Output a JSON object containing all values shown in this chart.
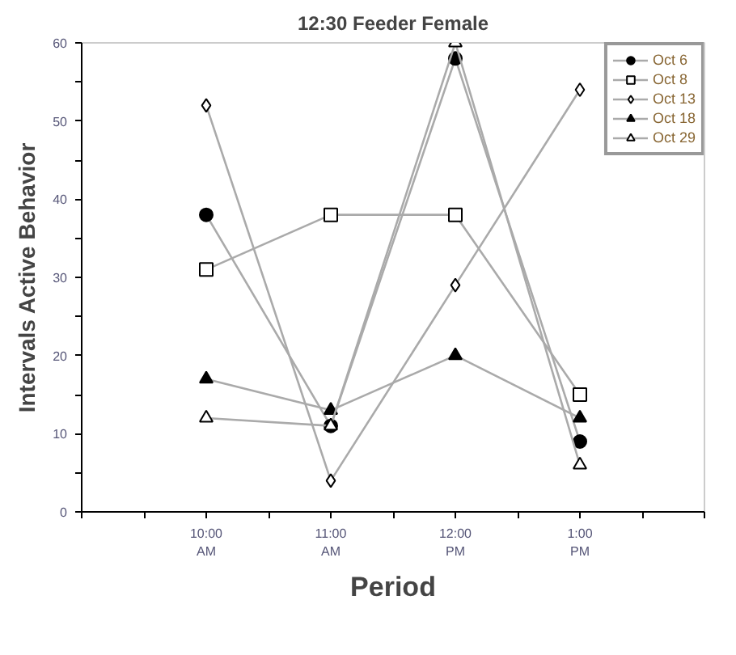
{
  "chart_data": {
    "type": "line",
    "title": "12:30 Feeder Female",
    "xlabel": "Period",
    "ylabel": "Intervals Active Behavior",
    "x": [
      10,
      11,
      12,
      13
    ],
    "xlim": [
      9,
      14
    ],
    "xticks": [
      {
        "value": 9,
        "label": null
      },
      {
        "value": 9.5,
        "label": null
      },
      {
        "value": 10,
        "label": "10:00\nAM"
      },
      {
        "value": 10.5,
        "label": null
      },
      {
        "value": 11,
        "label": "11:00\nAM"
      },
      {
        "value": 11.5,
        "label": null
      },
      {
        "value": 12,
        "label": "12:00\nPM"
      },
      {
        "value": 12.5,
        "label": null
      },
      {
        "value": 13,
        "label": "1:00\nPM"
      },
      {
        "value": 13.5,
        "label": null
      },
      {
        "value": 14,
        "label": null
      }
    ],
    "ylim": [
      0,
      60
    ],
    "yticks": [
      0,
      {
        "value": 5,
        "label": null
      },
      10,
      {
        "value": 15,
        "label": null
      },
      20,
      {
        "value": 25,
        "label": null
      },
      30,
      {
        "value": 35,
        "label": null
      },
      40,
      {
        "value": 45,
        "label": null
      },
      50,
      {
        "value": 55,
        "label": null
      },
      60
    ],
    "grid": false,
    "legend": "top right",
    "line_style": "solid",
    "series": [
      {
        "name": "Oct 6",
        "color": "#000000",
        "marker": "circle",
        "values": [
          38,
          11,
          58,
          9
        ]
      },
      {
        "name": "Oct 8",
        "color": "#ffffff",
        "marker": "square",
        "values": [
          31,
          38,
          38,
          15
        ]
      },
      {
        "name": "Oct 13",
        "color": "#ffffff",
        "marker": "diamond",
        "values": [
          52,
          4,
          29,
          54
        ]
      },
      {
        "name": "Oct 18",
        "color": "#000000",
        "marker": "triangle",
        "values": [
          17,
          13,
          20,
          12
        ]
      },
      {
        "name": "Oct 29",
        "color": "#ffffff",
        "marker": "triangle",
        "values": [
          12,
          11,
          60,
          6
        ]
      }
    ]
  }
}
